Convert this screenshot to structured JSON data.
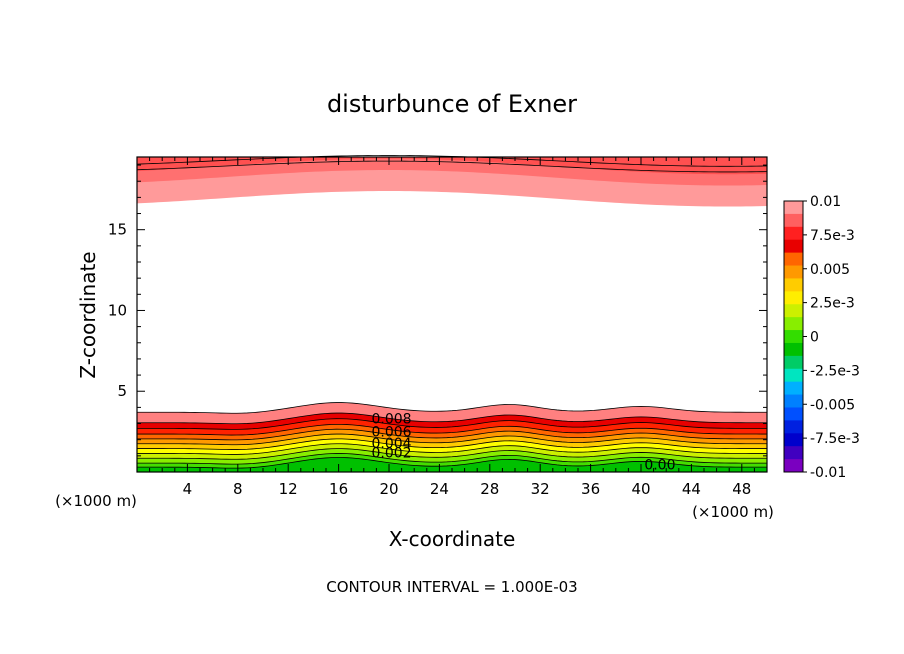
{
  "chart_data": {
    "type": "contour",
    "title": "disturbunce of Exner",
    "xlabel": "X-coordinate",
    "ylabel": "Z-coordinate",
    "x_unit_left": "(×1000 m)",
    "x_unit_right": "(×1000 m)",
    "footer": "CONTOUR INTERVAL = 1.000E-03",
    "xlim": [
      0,
      50
    ],
    "ylim": [
      0,
      19.5
    ],
    "x_ticks": [
      4,
      8,
      12,
      16,
      20,
      24,
      28,
      32,
      36,
      40,
      44,
      48
    ],
    "x_tick_labels": [
      "4",
      "8",
      "12",
      "16",
      "20",
      "24",
      "28",
      "32",
      "36",
      "40",
      "44",
      "48"
    ],
    "y_ticks": [
      5,
      10,
      15
    ],
    "y_tick_labels": [
      "5",
      "10",
      "15"
    ],
    "contour_interval": 0.001,
    "contour_labels": [
      {
        "text": "0.008",
        "x": 20.2,
        "y": 3.0
      },
      {
        "text": "0.006",
        "x": 20.2,
        "y": 2.2
      },
      {
        "text": "0.004",
        "x": 20.2,
        "y": 1.5
      },
      {
        "text": "0.002",
        "x": 20.2,
        "y": 0.9
      },
      {
        "text": "0.00",
        "x": 41.5,
        "y": 0.15
      }
    ],
    "colorbar": {
      "labels": [
        "0.01",
        "7.5e-3",
        "0.005",
        "2.5e-3",
        "0",
        "-2.5e-3",
        "-0.005",
        "-7.5e-3",
        "-0.01"
      ],
      "colors": [
        "#ff9a9a",
        "#ff0000",
        "#ff8000",
        "#ffd700",
        "#00cc00",
        "#00e5c0",
        "#0080ff",
        "#0000cc",
        "#7a00c0"
      ]
    },
    "bands_lower": [
      {
        "level": 0.0,
        "y_base": 0.3,
        "color": "#00c000"
      },
      {
        "level": 0.0005,
        "y_base": 0.55,
        "color": "#44dd00"
      },
      {
        "level": 0.001,
        "y_base": 0.85,
        "color": "#88ee00"
      },
      {
        "level": 0.002,
        "y_base": 1.15,
        "color": "#ccf000"
      },
      {
        "level": 0.003,
        "y_base": 1.45,
        "color": "#ffff00"
      },
      {
        "level": 0.004,
        "y_base": 1.75,
        "color": "#ffcc00"
      },
      {
        "level": 0.005,
        "y_base": 2.05,
        "color": "#ff9900"
      },
      {
        "level": 0.006,
        "y_base": 2.35,
        "color": "#ff6600"
      },
      {
        "level": 0.007,
        "y_base": 2.7,
        "color": "#ff2200"
      },
      {
        "level": 0.008,
        "y_base": 3.05,
        "color": "#e80000"
      },
      {
        "level": 0.009,
        "y_base": 3.7,
        "color": "#ff8080"
      }
    ],
    "bands_upper": [
      {
        "level": 0.009,
        "y_base": 16.9,
        "color": "#ff9a9a"
      },
      {
        "level": 0.0095,
        "y_base": 18.2,
        "color": "#ff7070"
      },
      {
        "level": 0.01,
        "y_base": 18.9,
        "color": "#ff5050"
      }
    ]
  }
}
